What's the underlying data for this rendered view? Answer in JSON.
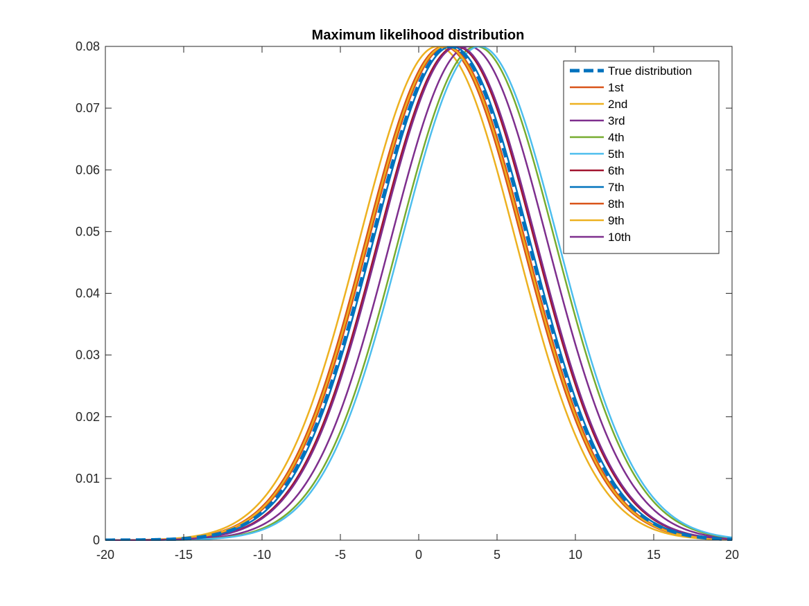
{
  "chart_data": {
    "type": "line",
    "title": "Maximum likelihood distribution",
    "xlabel": "",
    "ylabel": "",
    "xlim": [
      -20,
      20
    ],
    "ylim": [
      0,
      0.08
    ],
    "x_ticks": [
      "-20",
      "-15",
      "-10",
      "-5",
      "0",
      "5",
      "10",
      "15",
      "20"
    ],
    "y_ticks": [
      "0",
      "0.01",
      "0.02",
      "0.03",
      "0.04",
      "0.05",
      "0.06",
      "0.07",
      "0.08"
    ],
    "x_tick_values": [
      -20,
      -15,
      -10,
      -5,
      0,
      5,
      10,
      15,
      20
    ],
    "y_tick_values": [
      0,
      0.01,
      0.02,
      0.03,
      0.04,
      0.05,
      0.06,
      0.07,
      0.08
    ],
    "grid": false,
    "legend_position": "top-right",
    "series": [
      {
        "name": "True distribution",
        "mean": 2.0,
        "sigma": 5.0,
        "color": "#0072BD",
        "dashed": true,
        "width": 5
      },
      {
        "name": "1st",
        "mean": 1.6,
        "sigma": 5.0,
        "color": "#D95319",
        "dashed": false,
        "width": 2.5
      },
      {
        "name": "2nd",
        "mean": 1.2,
        "sigma": 5.0,
        "color": "#EDB120",
        "dashed": false,
        "width": 2.5
      },
      {
        "name": "3rd",
        "mean": 3.2,
        "sigma": 5.0,
        "color": "#7E2F8E",
        "dashed": false,
        "width": 2.5
      },
      {
        "name": "4th",
        "mean": 3.7,
        "sigma": 5.0,
        "color": "#77AC30",
        "dashed": false,
        "width": 2.5
      },
      {
        "name": "5th",
        "mean": 3.9,
        "sigma": 5.0,
        "color": "#4DBEEE",
        "dashed": false,
        "width": 2.5
      },
      {
        "name": "6th",
        "mean": 2.4,
        "sigma": 5.0,
        "color": "#A2142F",
        "dashed": false,
        "width": 2.5
      },
      {
        "name": "7th",
        "mean": 2.1,
        "sigma": 5.0,
        "color": "#0072BD",
        "dashed": false,
        "width": 2.5
      },
      {
        "name": "8th",
        "mean": 1.8,
        "sigma": 5.0,
        "color": "#D95319",
        "dashed": false,
        "width": 2.5
      },
      {
        "name": "9th",
        "mean": 1.7,
        "sigma": 5.0,
        "color": "#EDB120",
        "dashed": false,
        "width": 2.5
      },
      {
        "name": "10th",
        "mean": 2.5,
        "sigma": 5.0,
        "color": "#7E2F8E",
        "dashed": false,
        "width": 2.5
      }
    ]
  }
}
